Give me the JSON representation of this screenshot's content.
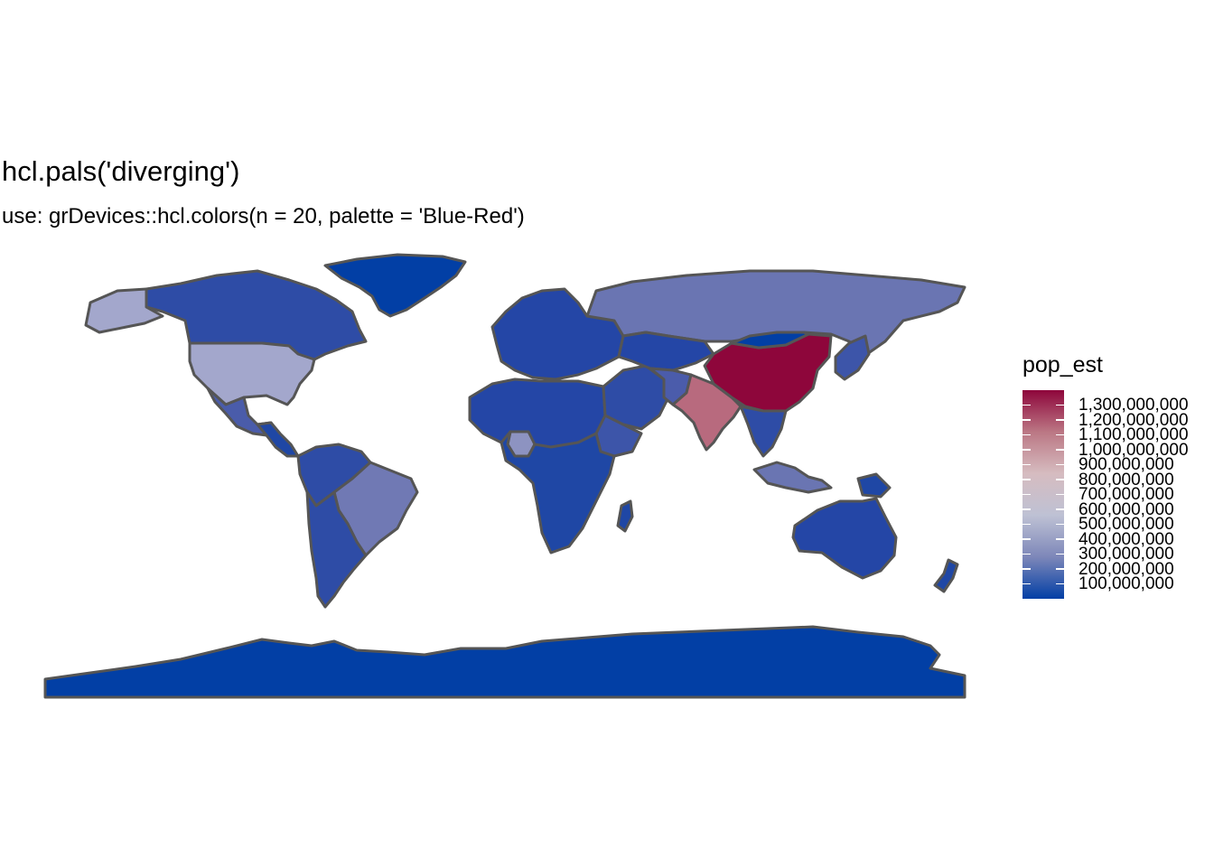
{
  "title": "hcl.pals('diverging')",
  "subtitle": "use: grDevices::hcl.colors(n = 20, palette = 'Blue-Red')",
  "legend": {
    "title": "pop_est",
    "min": 0,
    "max": 1400000000,
    "palette": [
      "#023FA5",
      "#7D87B9",
      "#BEC1D4",
      "#D6BCC0",
      "#BB7784",
      "#8E063B"
    ],
    "ticks": [
      {
        "value": 100000000,
        "label": "100,000,000"
      },
      {
        "value": 200000000,
        "label": "200,000,000"
      },
      {
        "value": 300000000,
        "label": "300,000,000"
      },
      {
        "value": 400000000,
        "label": "400,000,000"
      },
      {
        "value": 500000000,
        "label": "500,000,000"
      },
      {
        "value": 600000000,
        "label": "600,000,000"
      },
      {
        "value": 700000000,
        "label": "700,000,000"
      },
      {
        "value": 800000000,
        "label": "800,000,000"
      },
      {
        "value": 900000000,
        "label": "900,000,000"
      },
      {
        "value": 1000000000,
        "label": "1,000,000,000"
      },
      {
        "value": 1100000000,
        "label": "1,100,000,000"
      },
      {
        "value": 1200000000,
        "label": "1,200,000,000"
      },
      {
        "value": 1300000000,
        "label": "1,300,000,000"
      }
    ]
  },
  "map": {
    "border_color": "#555555",
    "regions": [
      {
        "id": "greenland",
        "color": "#023FA5"
      },
      {
        "id": "canada",
        "color": "#2E4CA6"
      },
      {
        "id": "alaska",
        "color": "#A3A7CC"
      },
      {
        "id": "usa",
        "color": "#A3A7CC"
      },
      {
        "id": "mexico",
        "color": "#4A5CAA"
      },
      {
        "id": "central-america",
        "color": "#1F47A5"
      },
      {
        "id": "south-america-north",
        "color": "#2E4CA6"
      },
      {
        "id": "brazil",
        "color": "#7079B4"
      },
      {
        "id": "south-america-south",
        "color": "#2E4CA6"
      },
      {
        "id": "europe",
        "color": "#2446A6"
      },
      {
        "id": "russia",
        "color": "#6A75B2"
      },
      {
        "id": "north-africa",
        "color": "#2446A6"
      },
      {
        "id": "nigeria",
        "color": "#8D93C1"
      },
      {
        "id": "ethiopia",
        "color": "#3D55A9"
      },
      {
        "id": "central-southern-africa",
        "color": "#1F47A5"
      },
      {
        "id": "madagascar",
        "color": "#1F47A5"
      },
      {
        "id": "middle-east",
        "color": "#2E4CA6"
      },
      {
        "id": "central-asia",
        "color": "#2446A6"
      },
      {
        "id": "pakistan",
        "color": "#4B5CAB"
      },
      {
        "id": "india",
        "color": "#B86A7E"
      },
      {
        "id": "china",
        "color": "#8E063B"
      },
      {
        "id": "mongolia",
        "color": "#023FA5"
      },
      {
        "id": "southeast-asia",
        "color": "#2E4CA6"
      },
      {
        "id": "japan-korea",
        "color": "#3D55A9"
      },
      {
        "id": "indonesia",
        "color": "#6A75B2"
      },
      {
        "id": "new-guinea",
        "color": "#1F47A5"
      },
      {
        "id": "australia",
        "color": "#2446A6"
      },
      {
        "id": "new-zealand",
        "color": "#1F47A5"
      },
      {
        "id": "antarctica",
        "color": "#023FA5"
      }
    ]
  }
}
